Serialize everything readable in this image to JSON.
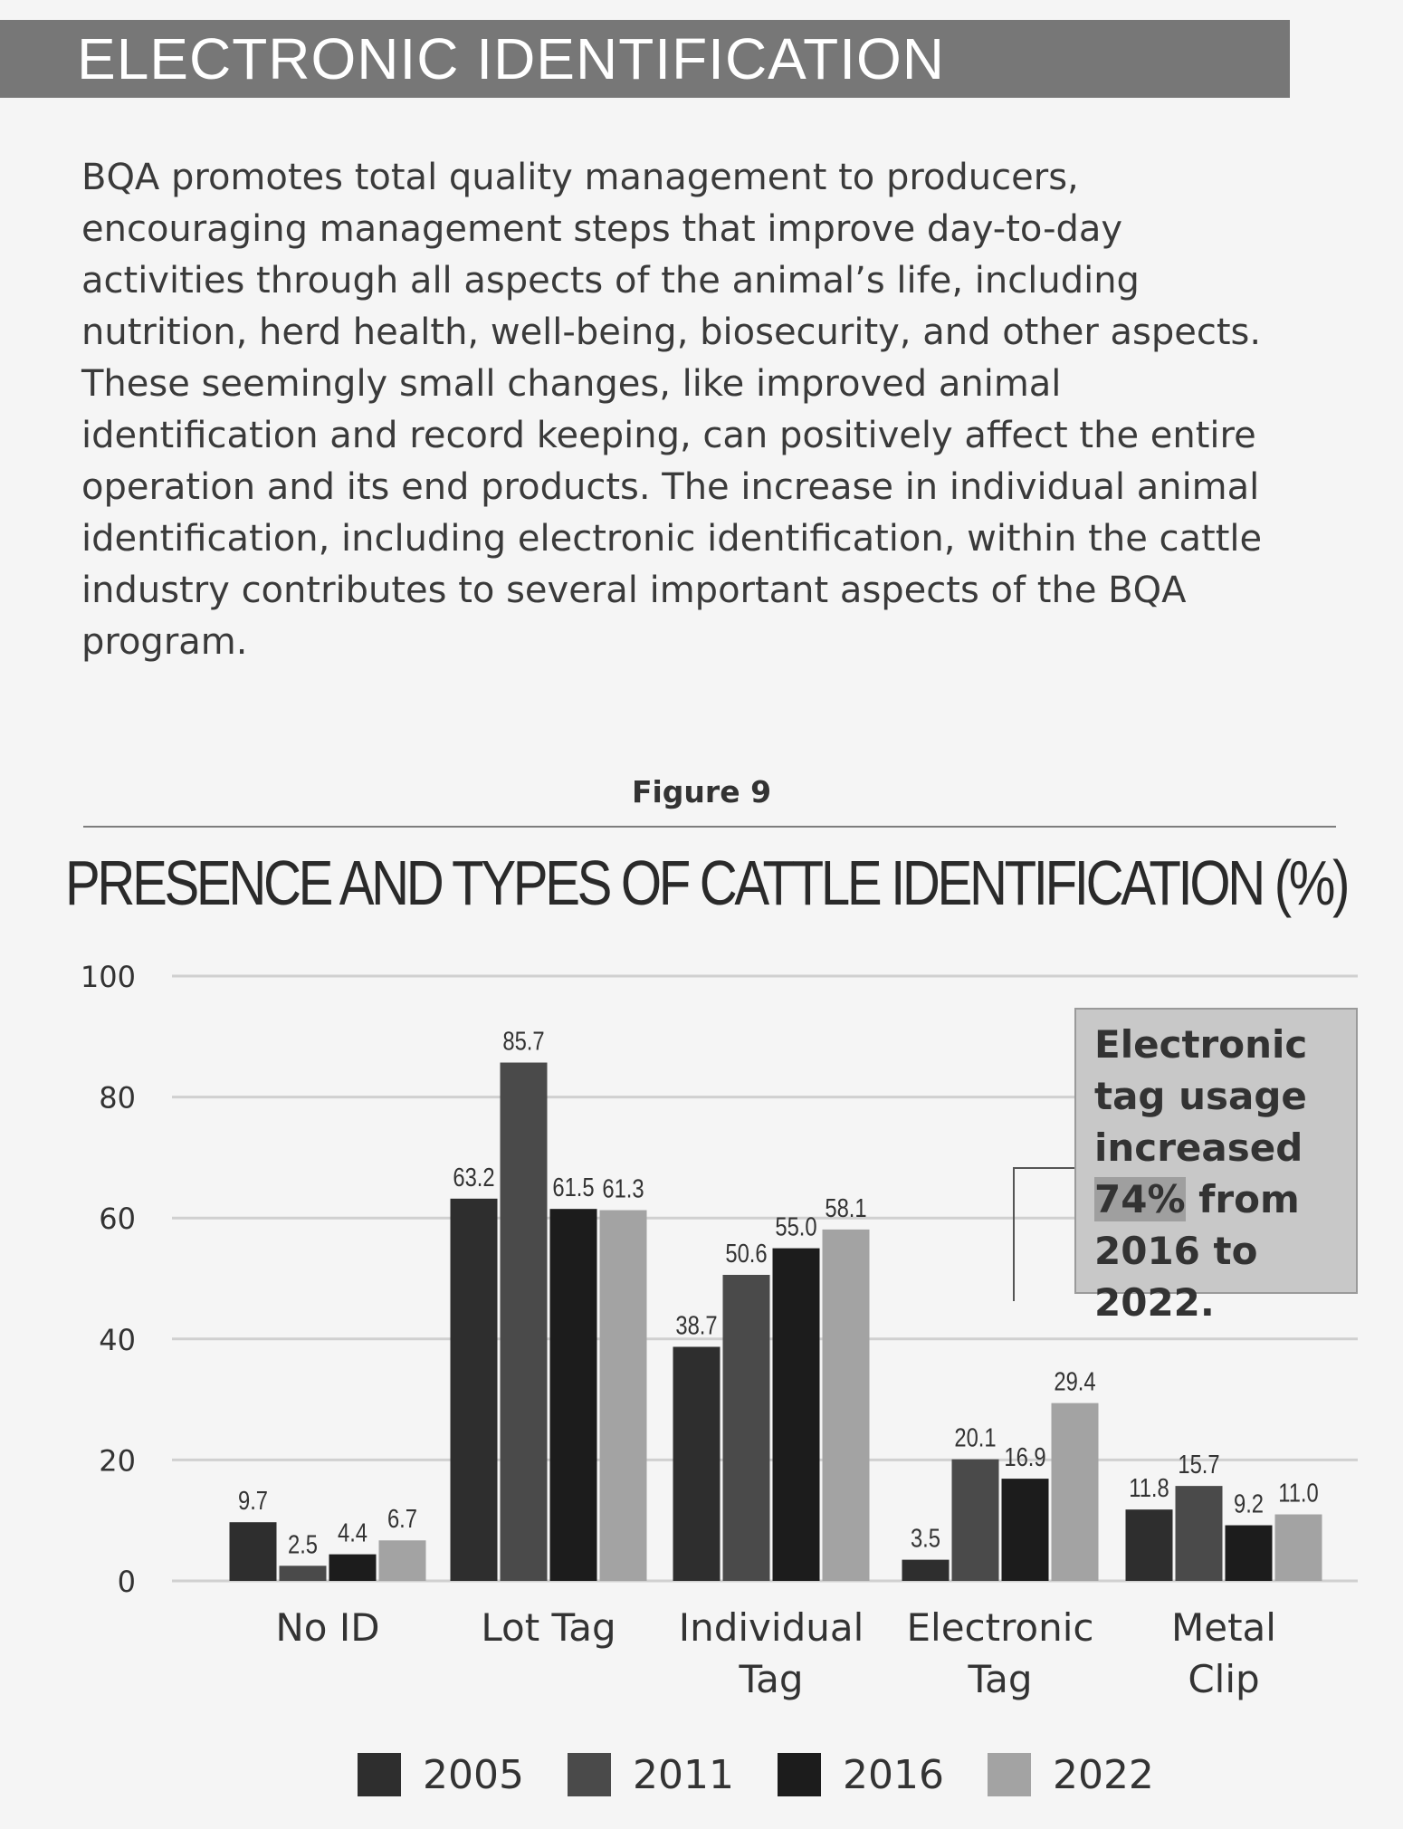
{
  "section": {
    "title": "ELECTRONIC IDENTIFICATION",
    "paragraph": "BQA promotes total quality management to producers, encouraging management steps that improve day-to-day activities through all aspects of the animal’s life, including nutrition, herd health, well-being, biosecurity, and other aspects. These seemingly small changes, like improved animal identification and record keeping, can positively affect the entire operation and its end products. The increase in individual animal identification, including electronic identification, within the cattle industry contributes to several important aspects of the BQA program."
  },
  "figure": {
    "label": "Figure 9"
  },
  "annotation": {
    "line1": "Electronic",
    "line2": "tag usage",
    "line3": "increased",
    "highlight": "74%",
    "line4_rest": " from",
    "line5": "2016 to 2022."
  },
  "chart_data": {
    "type": "bar",
    "title": "PRESENCE AND TYPES OF CATTLE IDENTIFICATION (%)",
    "xlabel": "",
    "ylabel": "",
    "ylim": [
      0,
      100
    ],
    "yticks": [
      0,
      20,
      40,
      60,
      80,
      100
    ],
    "grid": true,
    "legend_position": "bottom",
    "categories": [
      "No ID",
      "Lot Tag",
      "Individual Tag",
      "Electronic Tag",
      "Metal Clip"
    ],
    "category_lines": [
      [
        "No ID"
      ],
      [
        "Lot Tag"
      ],
      [
        "Individual",
        "Tag"
      ],
      [
        "Electronic",
        "Tag"
      ],
      [
        "Metal",
        "Clip"
      ]
    ],
    "series": [
      {
        "name": "2005",
        "color": "#2e2e2e",
        "values": [
          9.7,
          63.2,
          38.7,
          3.5,
          11.8
        ],
        "labels": [
          "9.7",
          "63.2",
          "38.7",
          "3.5",
          "11.8"
        ]
      },
      {
        "name": "2011",
        "color": "#4a4a4a",
        "values": [
          2.5,
          85.7,
          50.6,
          20.1,
          15.7
        ],
        "labels": [
          "2.5",
          "85.7",
          "50.6",
          "20.1",
          "15.7"
        ]
      },
      {
        "name": "2016",
        "color": "#1c1c1c",
        "values": [
          4.4,
          61.5,
          55.0,
          16.9,
          9.2
        ],
        "labels": [
          "4.4",
          "61.5",
          "55.0",
          "16.9",
          "9.2"
        ]
      },
      {
        "name": "2022",
        "color": "#a3a3a3",
        "values": [
          6.7,
          61.3,
          58.1,
          29.4,
          11.0
        ],
        "labels": [
          "6.7",
          "61.3",
          "58.1",
          "29.4",
          "11.0"
        ]
      }
    ]
  }
}
